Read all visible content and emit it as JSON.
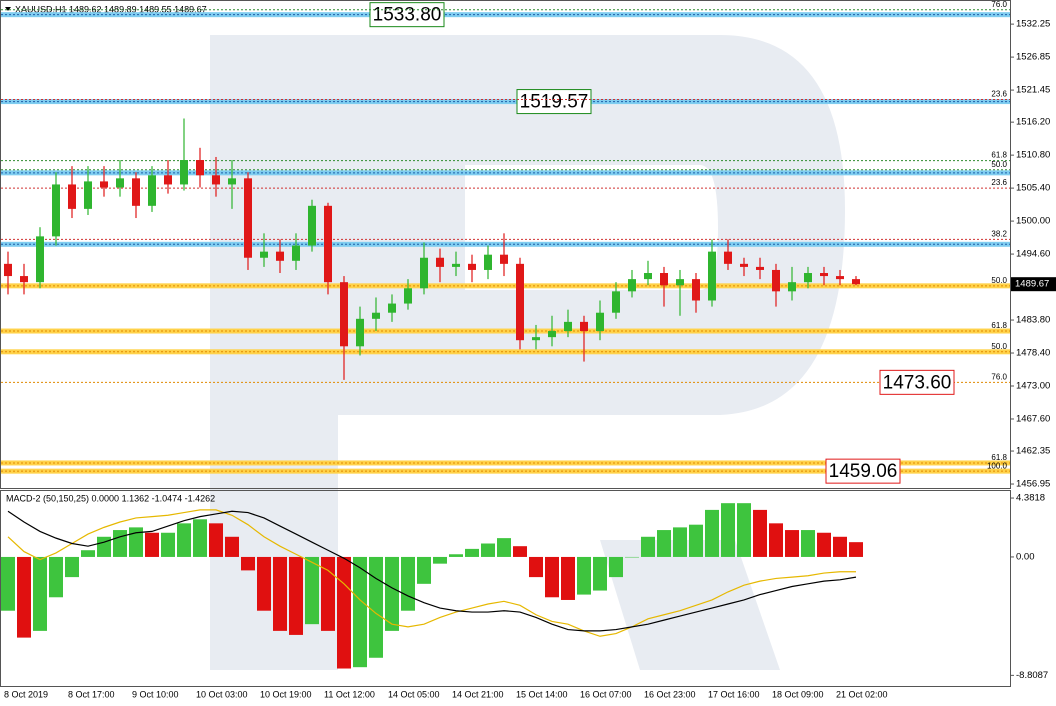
{
  "chart_data": [
    {
      "type": "candlestick",
      "title": "XAUUSD,H1  1489.62 1489.89 1489.55 1489.67",
      "categories": [
        "8 Oct 2019",
        null,
        null,
        null,
        "8 Oct 17:00",
        null,
        null,
        null,
        "9 Oct 10:00",
        null,
        null,
        null,
        "10 Oct 03:00",
        null,
        null,
        null,
        "10 Oct 19:00",
        null,
        null,
        null,
        "11 Oct 12:00",
        null,
        null,
        null,
        "14 Oct 05:00",
        null,
        null,
        null,
        "14 Oct 21:00",
        null,
        null,
        null,
        "15 Oct 14:00",
        null,
        null,
        null,
        "16 Oct 07:00",
        null,
        null,
        null,
        "16 Oct 23:00",
        null,
        null,
        null,
        "17 Oct 16:00",
        null,
        null,
        null,
        "18 Oct 09:00",
        null,
        null,
        null,
        "21 Oct 02:00",
        null
      ],
      "open": [
        1493,
        1491,
        1490,
        1497.5,
        1506,
        1502,
        1506.5,
        1505.5,
        1507,
        1502.5,
        1507.5,
        1506,
        1510,
        1507.5,
        1506,
        1507,
        1494,
        1495,
        1493.5,
        1496,
        1502.5,
        1490,
        1479.5,
        1484,
        1485,
        1486.5,
        1489,
        1494,
        1492.5,
        1493,
        1492,
        1494.5,
        1493,
        1480.5,
        1481,
        1482,
        1483.5,
        1482,
        1485,
        1488.5,
        1490.5,
        1491.5,
        1489.5,
        1490.5,
        1487,
        1495,
        1493,
        1492.5,
        1492,
        1488.5,
        1490,
        1491.5,
        1491,
        1490.5
      ],
      "high": [
        1495,
        1493,
        1499,
        1508,
        1509,
        1509,
        1509,
        1510,
        1508,
        1509,
        1510,
        1516.8,
        1512,
        1510.5,
        1510,
        1508,
        1498,
        1497,
        1498,
        1503.5,
        1503,
        1491,
        1486,
        1487.5,
        1488,
        1490.5,
        1496.5,
        1495.5,
        1495,
        1494.5,
        1496,
        1498,
        1494,
        1483,
        1484.5,
        1485.5,
        1484.5,
        1487,
        1490,
        1492,
        1493.5,
        1492.5,
        1492,
        1491.5,
        1497,
        1497,
        1494,
        1494,
        1493,
        1492.5,
        1492.5,
        1492.5,
        1492,
        1491
      ],
      "low": [
        1488,
        1488,
        1489,
        1496,
        1500.5,
        1501,
        1504,
        1504,
        1500.5,
        1501.5,
        1504.5,
        1505,
        1505.5,
        1504,
        1502,
        1492,
        1492.5,
        1491.5,
        1492,
        1495,
        1488,
        1474,
        1478,
        1482,
        1483.5,
        1485.5,
        1488,
        1490,
        1491,
        1490,
        1490.5,
        1491,
        1479,
        1479,
        1479.5,
        1481,
        1477,
        1480.5,
        1484,
        1487.5,
        1489.5,
        1486,
        1484.5,
        1485,
        1486,
        1492,
        1491,
        1490.5,
        1486,
        1487,
        1489,
        1489.5,
        1489.5,
        1489.5
      ],
      "close": [
        1491,
        1490,
        1497.5,
        1506,
        1502,
        1506.5,
        1505.5,
        1507,
        1502.5,
        1507.5,
        1506,
        1510,
        1507.5,
        1506,
        1507,
        1494,
        1495,
        1493.5,
        1496,
        1502.5,
        1490,
        1479.5,
        1484,
        1485,
        1486.5,
        1489,
        1494,
        1492.5,
        1493,
        1492,
        1494.5,
        1493,
        1480.5,
        1481,
        1482,
        1483.5,
        1482,
        1485,
        1488.5,
        1490.5,
        1491.5,
        1489.5,
        1490.5,
        1487,
        1495,
        1493,
        1492.5,
        1492,
        1488.5,
        1490,
        1491.5,
        1491,
        1490.5,
        1489.67
      ],
      "up_color": "#2fb52f",
      "down_color": "#e01818",
      "ylim": [
        1456.3,
        1536.2
      ],
      "yticks": [
        1532.25,
        1526.85,
        1521.45,
        {
          "value": 1516.2,
          "label": "1516.20"
        },
        {
          "value": 1510.8,
          "label": "1510.80"
        },
        {
          "value": 1505.4,
          "label": "1505.40"
        },
        {
          "value": 1500,
          "label": "1500.00"
        },
        {
          "value": 1494.6,
          "label": "1494.60"
        },
        {
          "value": 1483.8,
          "label": "1483.80"
        },
        {
          "value": 1478.4,
          "label": "1478.40"
        },
        {
          "value": 1473,
          "label": "1473.00"
        },
        {
          "value": 1467.6,
          "label": "1467.60"
        },
        1462.35,
        1456.95
      ],
      "last_price": 1489.67,
      "levels": [
        {
          "value": 1533.8,
          "kind": "band",
          "color": "#7fcdf0",
          "stroke": "#1f5fa8",
          "label": "1533.80",
          "label_color": "#1a8a1a"
        },
        {
          "value": 1519.57,
          "kind": "band",
          "color": "#7fcdf0",
          "stroke": "#1f5fa8",
          "label": "1519.57",
          "label_color": "#1a8a1a"
        },
        {
          "value": 1507.9,
          "kind": "band",
          "color": "#7fcdf0",
          "stroke": "#1f5fa8"
        },
        {
          "value": 1496.2,
          "kind": "band",
          "color": "#7fcdf0",
          "stroke": "#1f5fa8"
        },
        {
          "value": 1534.6,
          "kind": "dotted",
          "color": "#2e8b2e",
          "ratio": "76.0"
        },
        {
          "value": 1519.9,
          "kind": "dotted",
          "color": "#d03030",
          "ratio": "23.6"
        },
        {
          "value": 1509.9,
          "kind": "dotted",
          "color": "#2e8b2e",
          "ratio": "61.8"
        },
        {
          "value": 1508.4,
          "kind": "dotted",
          "color": "#2e8b2e",
          "ratio": "50.0"
        },
        {
          "value": 1505.4,
          "kind": "dotted",
          "color": "#d03030",
          "ratio": "23.6"
        },
        {
          "value": 1497.0,
          "kind": "dotted",
          "color": "#d03030",
          "ratio": "38.2"
        },
        {
          "value": 1489.4,
          "kind": "band",
          "color": "#ffd24a",
          "stroke": "#e08a00",
          "ratio": "50.0"
        },
        {
          "value": 1482.0,
          "kind": "band",
          "color": "#ffd24a",
          "stroke": "#e08a00",
          "ratio": "61.8"
        },
        {
          "value": 1478.6,
          "kind": "band",
          "color": "#ffd24a",
          "stroke": "#e08a00",
          "ratio": "50.0"
        },
        {
          "value": 1473.6,
          "kind": "dotted",
          "color": "#e08a00",
          "ratio": "76.0",
          "label": "1473.60",
          "label_color": "#e01818"
        },
        {
          "value": 1460.4,
          "kind": "band",
          "color": "#ffd24a",
          "stroke": "#e08a00",
          "ratio": "61.8"
        },
        {
          "value": 1459.06,
          "kind": "band",
          "color": "#ffd24a",
          "stroke": "#e08a00",
          "ratio": "100.0",
          "label": "1459.06",
          "label_color": "#e01818"
        }
      ]
    },
    {
      "type": "macd",
      "title": "MACD-2 (50,150,25) 0.0000 1.1362 -1.0474 -1.4262",
      "histogram": [
        -4,
        -6,
        -5.5,
        -3,
        -1.5,
        0.5,
        1.5,
        2,
        2.2,
        1.8,
        1.8,
        2.5,
        2.8,
        2.5,
        1.5,
        -1,
        -4,
        -5.5,
        -5.8,
        -5,
        -5.5,
        -8.3,
        -8.2,
        -7.5,
        -5.5,
        -4,
        -2,
        -0.5,
        0.2,
        0.6,
        1,
        1.4,
        0.8,
        -1.5,
        -3,
        -3.2,
        -2.8,
        -2.5,
        -1.5,
        0,
        1.5,
        2,
        2.2,
        2.4,
        3.5,
        4,
        4,
        3.5,
        2.5,
        2,
        2,
        1.8,
        1.5,
        1.1
      ],
      "up_color": "#3ec43e",
      "down_color": "#e01010",
      "macd_line": {
        "color": "#000000",
        "values": [
          3.4,
          2.6,
          1.9,
          1.4,
          1.0,
          0.8,
          1.1,
          1.5,
          1.8,
          1.9,
          2.3,
          2.7,
          3.0,
          3.2,
          3.4,
          3.3,
          2.9,
          2.3,
          1.7,
          1.1,
          0.5,
          -0.1,
          -0.8,
          -1.6,
          -2.3,
          -2.9,
          -3.4,
          -3.8,
          -4.0,
          -4.1,
          -4.1,
          -4.0,
          -4.1,
          -4.5,
          -5.0,
          -5.4,
          -5.5,
          -5.5,
          -5.4,
          -5.2,
          -5.0,
          -4.7,
          -4.4,
          -4.1,
          -3.8,
          -3.5,
          -3.2,
          -2.8,
          -2.5,
          -2.2,
          -2.0,
          -1.8,
          -1.7,
          -1.5
        ]
      },
      "signal_line": {
        "color": "#e6b800",
        "values": [
          1.5,
          0.4,
          -0.2,
          0.3,
          1.0,
          1.7,
          2.2,
          2.6,
          2.9,
          3.0,
          3.1,
          3.3,
          3.5,
          3.5,
          3.1,
          2.4,
          1.5,
          0.8,
          0.2,
          -0.4,
          -1.0,
          -2.0,
          -3.2,
          -4.2,
          -5.0,
          -5.2,
          -5.0,
          -4.5,
          -4.1,
          -3.8,
          -3.5,
          -3.3,
          -3.6,
          -4.3,
          -4.8,
          -5.0,
          -5.5,
          -5.9,
          -5.7,
          -5.2,
          -4.6,
          -4.3,
          -4.0,
          -3.6,
          -3.2,
          -2.6,
          -2.1,
          -1.8,
          -1.6,
          -1.5,
          -1.4,
          -1.2,
          -1.1,
          -1.1
        ]
      },
      "ylim": [
        -9.6,
        4.98
      ],
      "yticks": [
        4.3818,
        {
          "value": 0,
          "label": "0.00"
        },
        -8.8087
      ]
    }
  ]
}
